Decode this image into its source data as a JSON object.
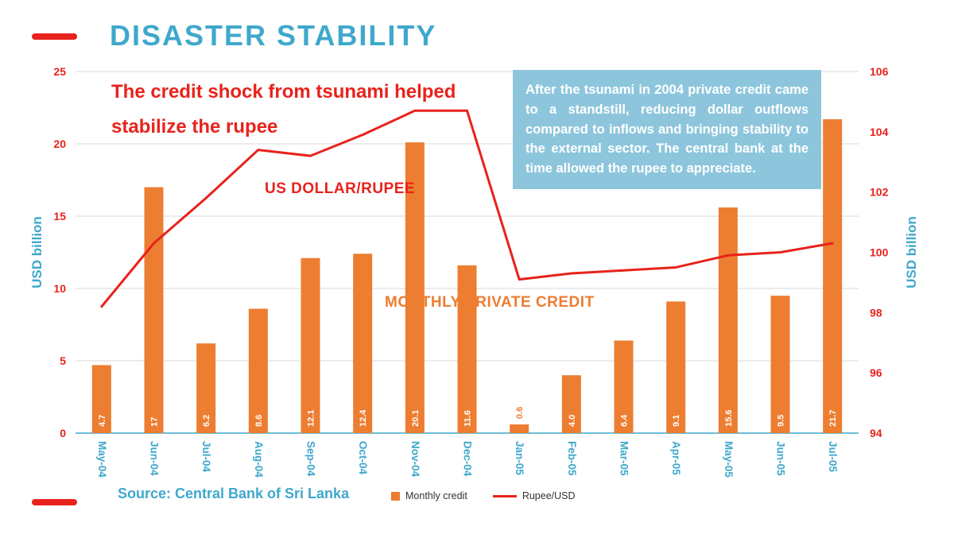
{
  "page": {
    "title": "DISASTER STABILITY",
    "subtitle": "The credit shock from tsunami helped stabilize the rupee",
    "annotation": "After the tsunami in 2004 private credit came to a standstill, reducing dollar outflows compared to inflows and bringing stability to the external sector. The central bank at the time allowed the rupee to appreciate.",
    "series_label_line": "US DOLLAR/RUPEE",
    "series_label_bars": "MONTHLY PRIVATE CREDIT",
    "legend_bar_label": "Monthly credit",
    "legend_line_label": "Rupee/USD",
    "source": "Source: Central Bank of Sri Lanka"
  },
  "colors": {
    "teal": "#3FA8CC",
    "red": "#E8221C",
    "orange": "#ED7D31",
    "grid": "#D9D9D9",
    "annotation_bg": "#8DC6DC",
    "bar_label": "#FFFFFF"
  },
  "chart_data": {
    "type": "bar",
    "title": "DISASTER STABILITY",
    "categories": [
      "May-04",
      "Jun-04",
      "Jul-04",
      "Aug-04",
      "Sep-04",
      "Oct-04",
      "Nov-04",
      "Dec-04",
      "Jan-05",
      "Feb-05",
      "Mar-05",
      "Apr-05",
      "May-05",
      "Jun-05",
      "Jul-05"
    ],
    "series": [
      {
        "name": "Monthly credit",
        "type": "bar",
        "axis": "left",
        "color": "#ED7D31",
        "values": [
          4.7,
          17,
          6.2,
          8.6,
          12.1,
          12.4,
          20.1,
          11.6,
          0.6,
          4.0,
          6.4,
          9.1,
          15.6,
          9.5,
          21.7
        ],
        "labels": [
          "4.7",
          "17",
          "6.2",
          "8.6",
          "12.1",
          "12.4",
          "20.1",
          "11.6",
          "0.6",
          "4.0",
          "6.4",
          "9.1",
          "15.6",
          "9.5",
          "21.7"
        ]
      },
      {
        "name": "Rupee/USD",
        "type": "line",
        "axis": "right",
        "color": "#E8221C",
        "values": [
          98.2,
          100.3,
          101.8,
          103.4,
          103.2,
          103.9,
          104.7,
          104.7,
          99.1,
          99.3,
          99.4,
          99.5,
          99.9,
          100.0,
          100.3
        ]
      }
    ],
    "left_axis": {
      "label": "USD billion",
      "min": 0,
      "max": 25,
      "step": 5
    },
    "right_axis": {
      "label": "USD billion",
      "min": 94,
      "max": 106,
      "step": 2
    },
    "grid": true,
    "legend_position": "bottom"
  }
}
